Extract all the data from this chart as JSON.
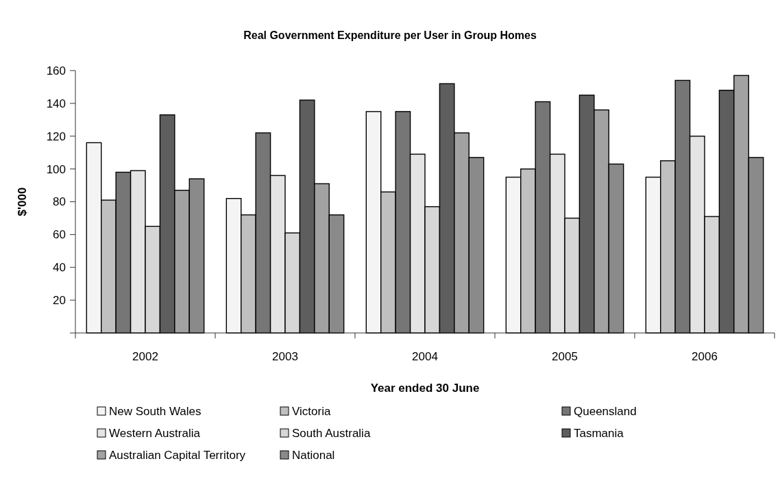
{
  "chart_data": {
    "type": "bar",
    "title": "Real Government Expenditure per User in Group Homes",
    "xlabel": "Year ended 30 June",
    "ylabel": "$'000",
    "categories": [
      "2002",
      "2003",
      "2004",
      "2005",
      "2006"
    ],
    "series": [
      {
        "name": "New South Wales",
        "color": "#f4f4f4",
        "values": [
          116,
          82,
          135,
          95,
          95
        ]
      },
      {
        "name": "Victoria",
        "color": "#c0c0c0",
        "values": [
          81,
          72,
          86,
          100,
          105
        ]
      },
      {
        "name": "Queensland",
        "color": "#767676",
        "values": [
          98,
          122,
          135,
          141,
          154
        ]
      },
      {
        "name": "Western Australia",
        "color": "#e4e4e4",
        "values": [
          99,
          96,
          109,
          109,
          120
        ]
      },
      {
        "name": "South Australia",
        "color": "#d6d6d6",
        "values": [
          65,
          61,
          77,
          70,
          71
        ]
      },
      {
        "name": "Tasmania",
        "color": "#5e5e5e",
        "values": [
          133,
          142,
          152,
          145,
          148
        ]
      },
      {
        "name": "Australian Capital Territory",
        "color": "#a2a2a2",
        "values": [
          87,
          91,
          122,
          136,
          157
        ]
      },
      {
        "name": "National",
        "color": "#8a8a8a",
        "values": [
          94,
          72,
          107,
          103,
          107
        ]
      }
    ],
    "ylim": [
      0,
      160
    ],
    "yticks": [
      {
        "value": 0,
        "label": null
      },
      20,
      40,
      60,
      80,
      100,
      120,
      140,
      160
    ],
    "legend": "bottom"
  }
}
